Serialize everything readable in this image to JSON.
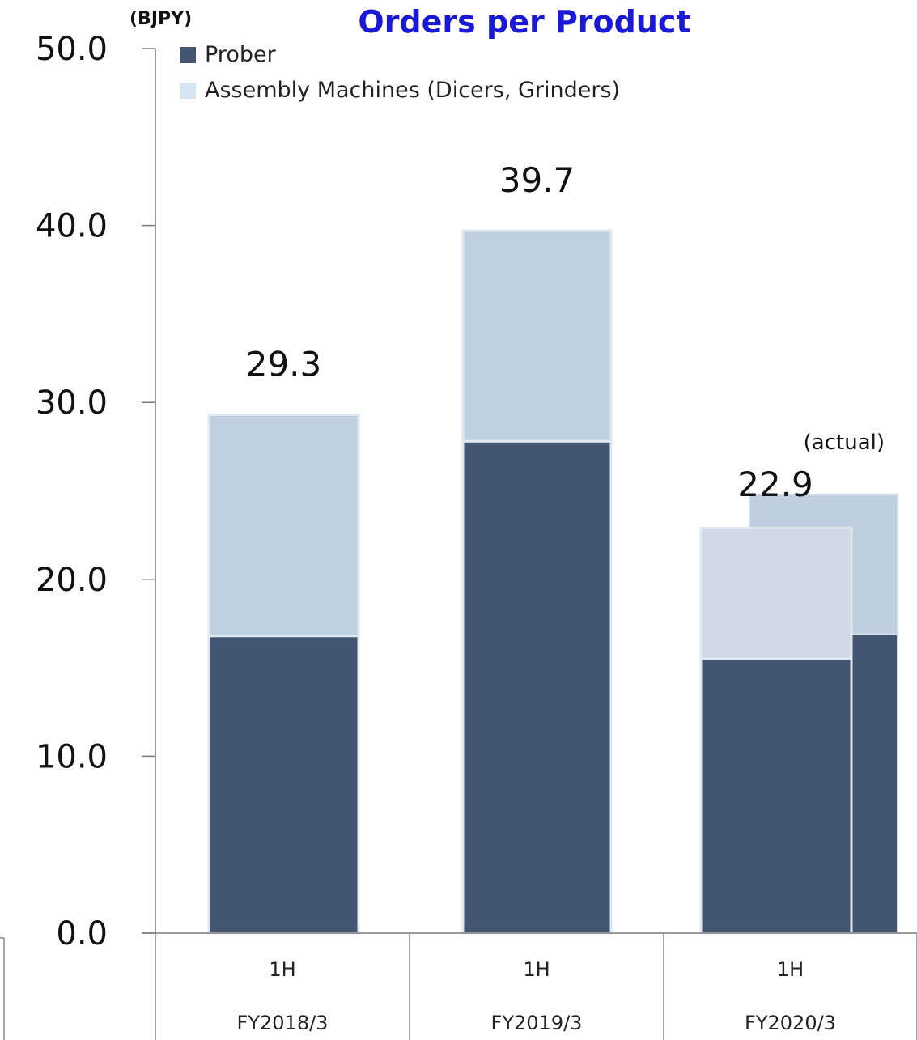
{
  "chart_data": {
    "type": "bar",
    "title": "Orders per Product",
    "unit_label": "(BJPY)",
    "ylim": [
      0,
      50
    ],
    "yticks": [
      "0.0",
      "10.0",
      "20.0",
      "30.0",
      "40.0",
      "50.0"
    ],
    "categories": [
      {
        "period": "1H",
        "fiscal_year": "FY2018/3"
      },
      {
        "period": "1H",
        "fiscal_year": "FY2019/3"
      },
      {
        "period": "1H",
        "fiscal_year": "FY2020/3"
      }
    ],
    "series": [
      {
        "name": "Prober",
        "color": "#425672",
        "values": [
          16.8,
          27.8,
          15.5
        ]
      },
      {
        "name": "Assembly Machines (Dicers, Grinders)",
        "color": "#c0d0e0",
        "values": [
          12.5,
          11.9,
          7.4
        ]
      }
    ],
    "totals": [
      "29.3",
      "39.7",
      "22.9"
    ],
    "actual_bar": {
      "note": "(actual)",
      "category_index": 2,
      "prober": 16.9,
      "assembly": 7.9,
      "prober_color": "#425672",
      "assembly_color": "#bfcfe0"
    },
    "stacked": true,
    "legend_position": "top",
    "grid": false
  }
}
